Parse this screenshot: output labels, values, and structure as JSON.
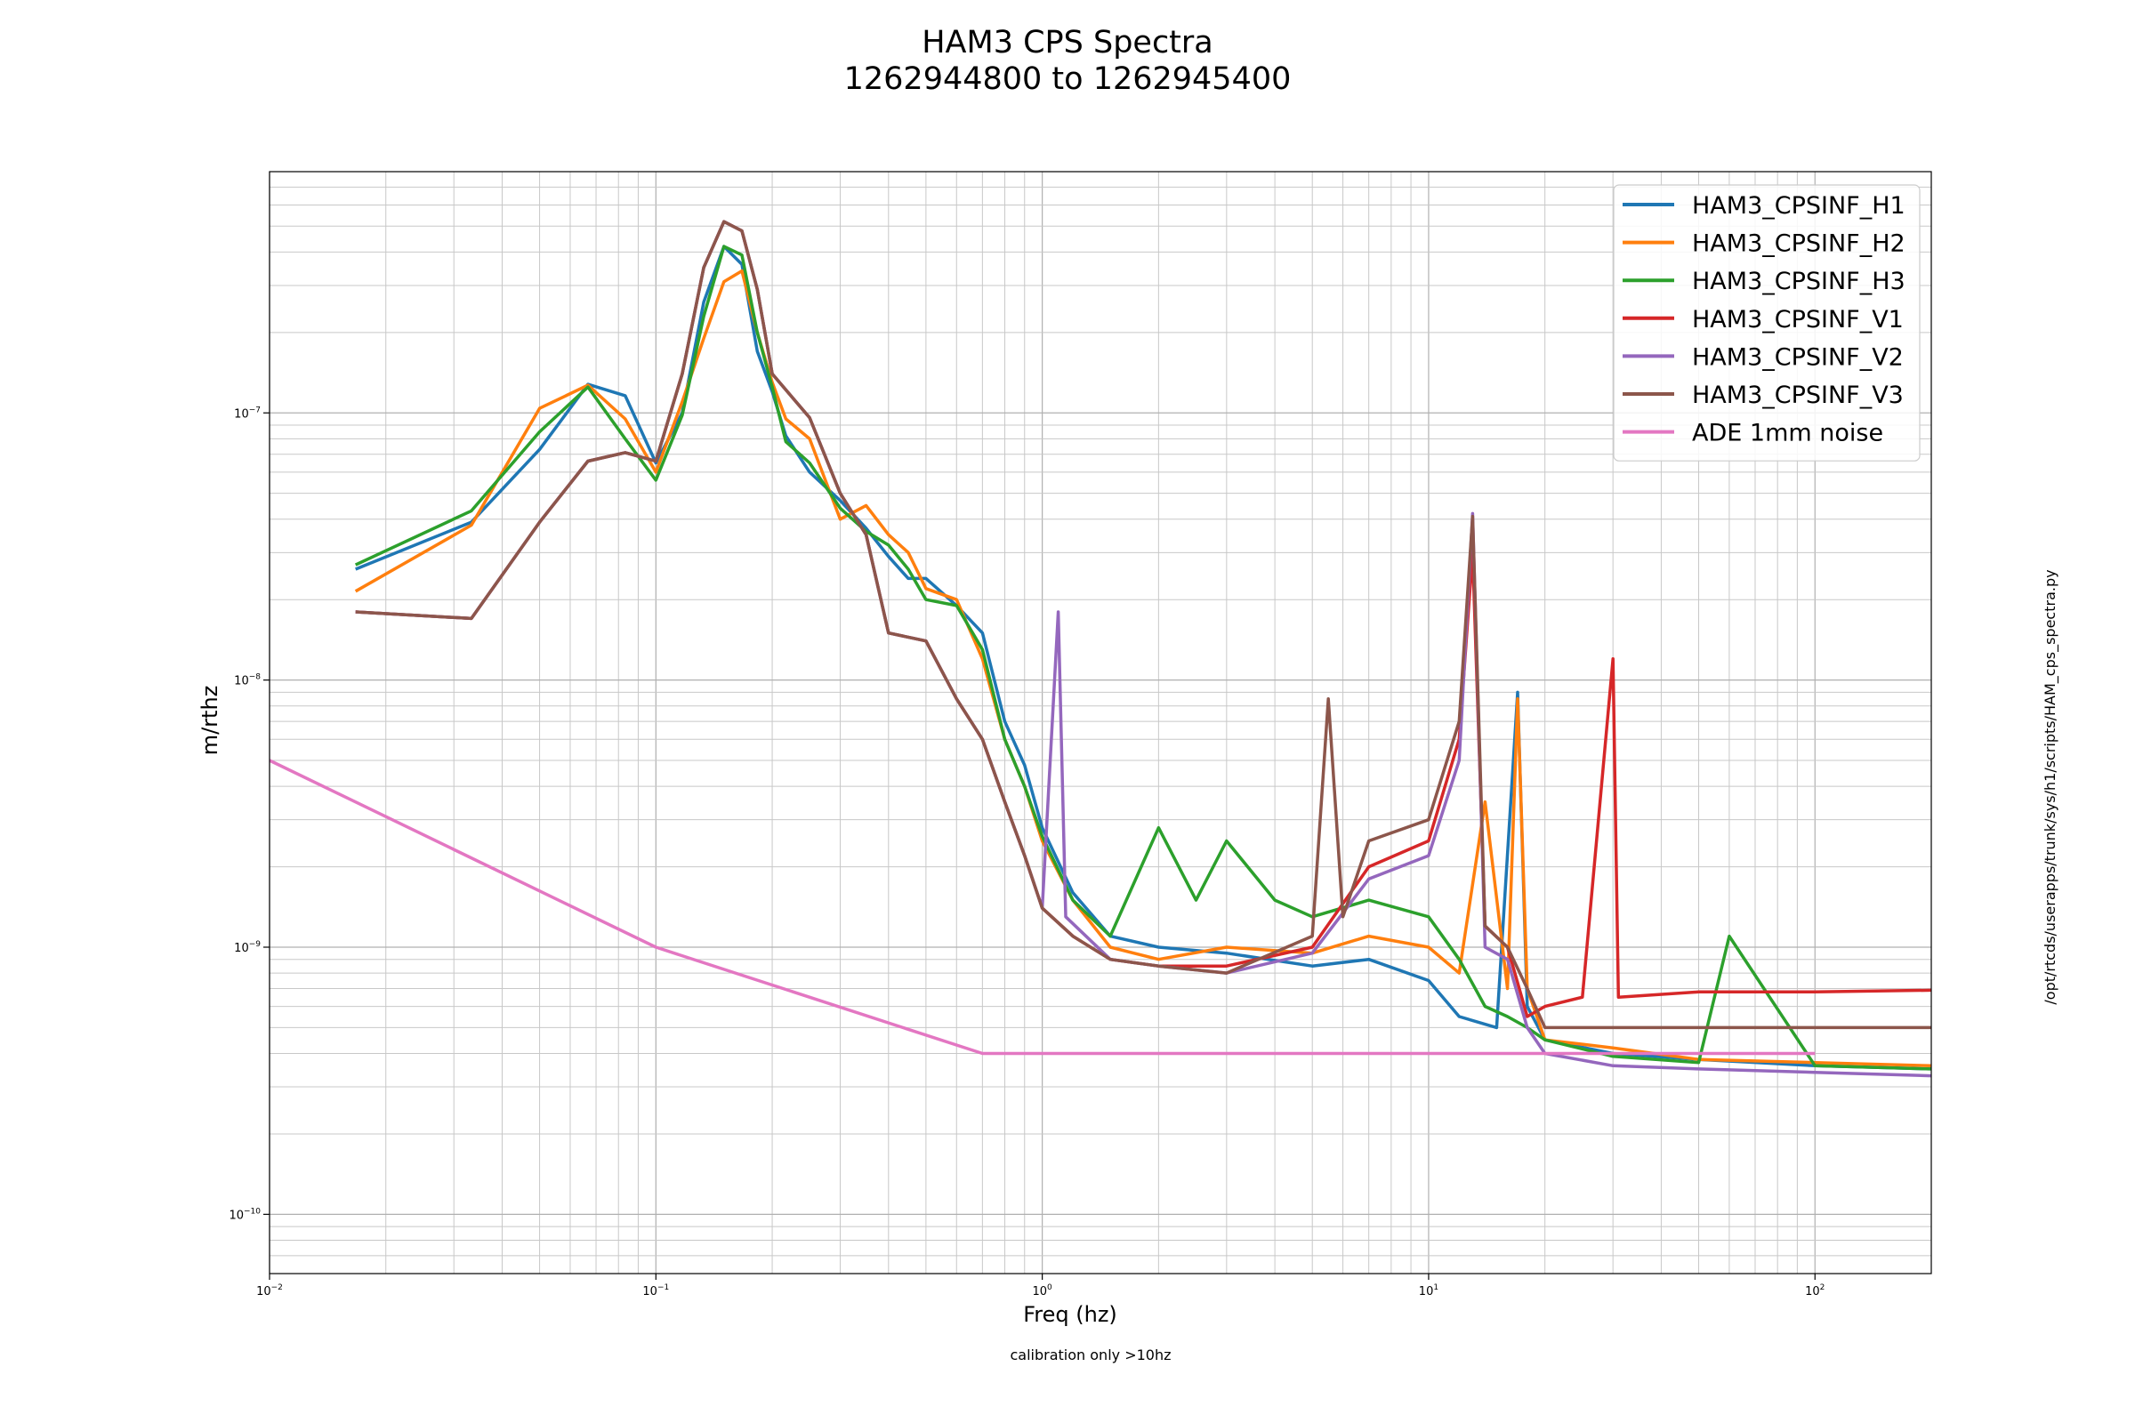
{
  "chart_data": {
    "type": "line",
    "title_line1": "HAM3 CPS Spectra",
    "title_line2": "1262944800 to 1262945400",
    "xlabel": "Freq (hz)",
    "ylabel": "m/rthz",
    "note_bottom": "calibration only >10hz",
    "note_side": "/opt/rtcds/userapps/trunk/sys/h1/scripts/HAM_cps_spectra.py",
    "xscale": "log",
    "yscale": "log",
    "xlim": [
      0.01,
      200
    ],
    "ylim": [
      6e-11,
      8e-07
    ],
    "grid": "major and minor",
    "legend_position": "upper right",
    "x_ticks": [
      {
        "value": 0.01,
        "base": "10",
        "exp": "−2"
      },
      {
        "value": 0.1,
        "base": "10",
        "exp": "−1"
      },
      {
        "value": 1,
        "base": "10",
        "exp": "0"
      },
      {
        "value": 10,
        "base": "10",
        "exp": "1"
      },
      {
        "value": 100,
        "base": "10",
        "exp": "2"
      }
    ],
    "y_ticks": [
      {
        "value": 1e-10,
        "base": "10",
        "exp": "−10"
      },
      {
        "value": 1e-09,
        "base": "10",
        "exp": "−9"
      },
      {
        "value": 1e-08,
        "base": "10",
        "exp": "−8"
      },
      {
        "value": 1e-07,
        "base": "10",
        "exp": "−7"
      }
    ],
    "series": [
      {
        "name": "HAM3_CPSINF_H1",
        "color": "#1f77b4",
        "points": [
          [
            0.0167,
            2.6e-08
          ],
          [
            0.0333,
            3.9e-08
          ],
          [
            0.05,
            7.3e-08
          ],
          [
            0.0667,
            1.28e-07
          ],
          [
            0.0833,
            1.16e-07
          ],
          [
            0.1,
            6.5e-08
          ],
          [
            0.117,
            1e-07
          ],
          [
            0.133,
            2.6e-07
          ],
          [
            0.15,
            4.2e-07
          ],
          [
            0.167,
            3.6e-07
          ],
          [
            0.183,
            1.7e-07
          ],
          [
            0.2,
            1.2e-07
          ],
          [
            0.217,
            8.2e-08
          ],
          [
            0.25,
            6e-08
          ],
          [
            0.3,
            4.7e-08
          ],
          [
            0.35,
            3.7e-08
          ],
          [
            0.4,
            2.9e-08
          ],
          [
            0.45,
            2.4e-08
          ],
          [
            0.5,
            2.4e-08
          ],
          [
            0.6,
            1.9e-08
          ],
          [
            0.7,
            1.5e-08
          ],
          [
            0.8,
            7e-09
          ],
          [
            0.9,
            4.8e-09
          ],
          [
            1.0,
            2.8e-09
          ],
          [
            1.2,
            1.6e-09
          ],
          [
            1.5,
            1.1e-09
          ],
          [
            2,
            1e-09
          ],
          [
            3,
            9.5e-10
          ],
          [
            5,
            8.5e-10
          ],
          [
            7,
            9e-10
          ],
          [
            10,
            7.5e-10
          ],
          [
            12,
            5.5e-10
          ],
          [
            15,
            5e-10
          ],
          [
            17,
            9e-09
          ],
          [
            18,
            6e-10
          ],
          [
            20,
            4.5e-10
          ],
          [
            30,
            4e-10
          ],
          [
            50,
            3.8e-10
          ],
          [
            100,
            3.6e-10
          ],
          [
            200,
            3.5e-10
          ]
        ]
      },
      {
        "name": "HAM3_CPSINF_H2",
        "color": "#ff7f0e",
        "points": [
          [
            0.0167,
            2.15e-08
          ],
          [
            0.0333,
            3.8e-08
          ],
          [
            0.05,
            1.04e-07
          ],
          [
            0.0667,
            1.27e-07
          ],
          [
            0.0833,
            9.5e-08
          ],
          [
            0.1,
            6e-08
          ],
          [
            0.117,
            1.1e-07
          ],
          [
            0.133,
            1.9e-07
          ],
          [
            0.15,
            3.1e-07
          ],
          [
            0.167,
            3.4e-07
          ],
          [
            0.183,
            2e-07
          ],
          [
            0.2,
            1.3e-07
          ],
          [
            0.217,
            9.5e-08
          ],
          [
            0.25,
            8e-08
          ],
          [
            0.3,
            4e-08
          ],
          [
            0.35,
            4.5e-08
          ],
          [
            0.4,
            3.5e-08
          ],
          [
            0.45,
            3e-08
          ],
          [
            0.5,
            2.2e-08
          ],
          [
            0.6,
            2e-08
          ],
          [
            0.7,
            1.2e-08
          ],
          [
            0.8,
            6e-09
          ],
          [
            0.9,
            4e-09
          ],
          [
            1.0,
            2.5e-09
          ],
          [
            1.2,
            1.5e-09
          ],
          [
            1.5,
            1e-09
          ],
          [
            2,
            9e-10
          ],
          [
            3,
            1e-09
          ],
          [
            5,
            9.5e-10
          ],
          [
            7,
            1.1e-09
          ],
          [
            10,
            1e-09
          ],
          [
            12,
            8e-10
          ],
          [
            14,
            3.5e-09
          ],
          [
            16,
            7e-10
          ],
          [
            17,
            8.5e-09
          ],
          [
            18,
            7e-10
          ],
          [
            20,
            4.5e-10
          ],
          [
            30,
            4.2e-10
          ],
          [
            50,
            3.8e-10
          ],
          [
            100,
            3.7e-10
          ],
          [
            200,
            3.6e-10
          ]
        ]
      },
      {
        "name": "HAM3_CPSINF_H3",
        "color": "#2ca02c",
        "points": [
          [
            0.0167,
            2.7e-08
          ],
          [
            0.0333,
            4.3e-08
          ],
          [
            0.05,
            8.5e-08
          ],
          [
            0.0667,
            1.25e-07
          ],
          [
            0.0833,
            8e-08
          ],
          [
            0.1,
            5.6e-08
          ],
          [
            0.117,
            9.8e-08
          ],
          [
            0.133,
            2.3e-07
          ],
          [
            0.15,
            4.2e-07
          ],
          [
            0.167,
            3.9e-07
          ],
          [
            0.183,
            2e-07
          ],
          [
            0.2,
            1.25e-07
          ],
          [
            0.217,
            7.8e-08
          ],
          [
            0.25,
            6.5e-08
          ],
          [
            0.3,
            4.4e-08
          ],
          [
            0.35,
            3.6e-08
          ],
          [
            0.4,
            3.2e-08
          ],
          [
            0.45,
            2.6e-08
          ],
          [
            0.5,
            2e-08
          ],
          [
            0.6,
            1.9e-08
          ],
          [
            0.7,
            1.3e-08
          ],
          [
            0.8,
            6e-09
          ],
          [
            0.9,
            4e-09
          ],
          [
            1.0,
            2.6e-09
          ],
          [
            1.2,
            1.5e-09
          ],
          [
            1.5,
            1.1e-09
          ],
          [
            2,
            2.8e-09
          ],
          [
            2.5,
            1.5e-09
          ],
          [
            3,
            2.5e-09
          ],
          [
            4,
            1.5e-09
          ],
          [
            5,
            1.3e-09
          ],
          [
            7,
            1.5e-09
          ],
          [
            10,
            1.3e-09
          ],
          [
            12,
            9e-10
          ],
          [
            14,
            6e-10
          ],
          [
            16,
            5.5e-10
          ],
          [
            18,
            5e-10
          ],
          [
            20,
            4.5e-10
          ],
          [
            30,
            3.9e-10
          ],
          [
            50,
            3.7e-10
          ],
          [
            60,
            1.1e-09
          ],
          [
            100,
            3.6e-10
          ],
          [
            200,
            3.5e-10
          ]
        ]
      },
      {
        "name": "HAM3_CPSINF_V1",
        "color": "#d62728",
        "points": [
          [
            0.0167,
            1.8e-08
          ],
          [
            0.0333,
            1.7e-08
          ],
          [
            0.05,
            3.9e-08
          ],
          [
            0.0667,
            6.6e-08
          ],
          [
            0.0833,
            7.1e-08
          ],
          [
            0.1,
            6.6e-08
          ],
          [
            0.117,
            1.4e-07
          ],
          [
            0.133,
            3.5e-07
          ],
          [
            0.15,
            5.2e-07
          ],
          [
            0.167,
            4.8e-07
          ],
          [
            0.183,
            2.9e-07
          ],
          [
            0.2,
            1.4e-07
          ],
          [
            0.25,
            9.6e-08
          ],
          [
            0.3,
            5e-08
          ],
          [
            0.35,
            3.5e-08
          ],
          [
            0.4,
            1.5e-08
          ],
          [
            0.5,
            1.4e-08
          ],
          [
            0.6,
            8.5e-09
          ],
          [
            0.7,
            6e-09
          ],
          [
            0.8,
            3.5e-09
          ],
          [
            0.9,
            2.2e-09
          ],
          [
            1.0,
            1.4e-09
          ],
          [
            1.2,
            1.1e-09
          ],
          [
            1.5,
            9e-10
          ],
          [
            2,
            8.5e-10
          ],
          [
            3,
            8.5e-10
          ],
          [
            5,
            1e-09
          ],
          [
            7,
            2e-09
          ],
          [
            10,
            2.5e-09
          ],
          [
            12,
            6e-09
          ],
          [
            13,
            3e-08
          ],
          [
            14,
            1.2e-09
          ],
          [
            16,
            1e-09
          ],
          [
            18,
            5.5e-10
          ],
          [
            20,
            6e-10
          ],
          [
            25,
            6.5e-10
          ],
          [
            30,
            1.2e-08
          ],
          [
            31,
            6.5e-10
          ],
          [
            50,
            6.8e-10
          ],
          [
            100,
            6.8e-10
          ],
          [
            200,
            6.9e-10
          ]
        ]
      },
      {
        "name": "HAM3_CPSINF_V2",
        "color": "#9467bd",
        "points": [
          [
            0.0167,
            1.8e-08
          ],
          [
            0.0333,
            1.7e-08
          ],
          [
            0.05,
            3.9e-08
          ],
          [
            0.0667,
            6.6e-08
          ],
          [
            0.0833,
            7.1e-08
          ],
          [
            0.1,
            6.6e-08
          ],
          [
            0.117,
            1.4e-07
          ],
          [
            0.133,
            3.5e-07
          ],
          [
            0.15,
            5.2e-07
          ],
          [
            0.167,
            4.8e-07
          ],
          [
            0.183,
            2.9e-07
          ],
          [
            0.2,
            1.4e-07
          ],
          [
            0.25,
            9.6e-08
          ],
          [
            0.3,
            5e-08
          ],
          [
            0.35,
            3.5e-08
          ],
          [
            0.4,
            1.5e-08
          ],
          [
            0.5,
            1.4e-08
          ],
          [
            0.6,
            8.5e-09
          ],
          [
            0.7,
            6e-09
          ],
          [
            0.8,
            3.5e-09
          ],
          [
            0.9,
            2.2e-09
          ],
          [
            1.0,
            1.4e-09
          ],
          [
            1.1,
            1.8e-08
          ],
          [
            1.15,
            1.3e-09
          ],
          [
            1.5,
            9e-10
          ],
          [
            2,
            8.5e-10
          ],
          [
            3,
            8e-10
          ],
          [
            5,
            9.5e-10
          ],
          [
            7,
            1.8e-09
          ],
          [
            10,
            2.2e-09
          ],
          [
            12,
            5e-09
          ],
          [
            13,
            4.2e-08
          ],
          [
            14,
            1e-09
          ],
          [
            16,
            9e-10
          ],
          [
            18,
            5e-10
          ],
          [
            20,
            4e-10
          ],
          [
            30,
            3.6e-10
          ],
          [
            50,
            3.5e-10
          ],
          [
            100,
            3.4e-10
          ],
          [
            200,
            3.3e-10
          ]
        ]
      },
      {
        "name": "HAM3_CPSINF_V3",
        "color": "#8c564b",
        "points": [
          [
            0.0167,
            1.8e-08
          ],
          [
            0.0333,
            1.7e-08
          ],
          [
            0.05,
            3.9e-08
          ],
          [
            0.0667,
            6.6e-08
          ],
          [
            0.0833,
            7.1e-08
          ],
          [
            0.1,
            6.6e-08
          ],
          [
            0.117,
            1.4e-07
          ],
          [
            0.133,
            3.5e-07
          ],
          [
            0.15,
            5.2e-07
          ],
          [
            0.167,
            4.8e-07
          ],
          [
            0.183,
            2.9e-07
          ],
          [
            0.2,
            1.4e-07
          ],
          [
            0.25,
            9.6e-08
          ],
          [
            0.3,
            5e-08
          ],
          [
            0.35,
            3.5e-08
          ],
          [
            0.4,
            1.5e-08
          ],
          [
            0.5,
            1.4e-08
          ],
          [
            0.6,
            8.5e-09
          ],
          [
            0.7,
            6e-09
          ],
          [
            0.8,
            3.5e-09
          ],
          [
            0.9,
            2.2e-09
          ],
          [
            1.0,
            1.4e-09
          ],
          [
            1.2,
            1.1e-09
          ],
          [
            1.5,
            9e-10
          ],
          [
            2,
            8.5e-10
          ],
          [
            3,
            8e-10
          ],
          [
            5,
            1.1e-09
          ],
          [
            5.5,
            8.5e-09
          ],
          [
            6,
            1.3e-09
          ],
          [
            7,
            2.5e-09
          ],
          [
            10,
            3e-09
          ],
          [
            12,
            7e-09
          ],
          [
            13,
            4.1e-08
          ],
          [
            14,
            1.2e-09
          ],
          [
            16,
            1e-09
          ],
          [
            18,
            7e-10
          ],
          [
            20,
            5e-10
          ],
          [
            30,
            5e-10
          ],
          [
            50,
            5e-10
          ],
          [
            100,
            5e-10
          ],
          [
            200,
            5e-10
          ]
        ]
      },
      {
        "name": "ADE 1mm noise",
        "color": "#e377c2",
        "points": [
          [
            0.01,
            5e-09
          ],
          [
            0.1,
            1e-09
          ],
          [
            0.7,
            4e-10
          ],
          [
            100,
            4e-10
          ]
        ]
      }
    ]
  }
}
